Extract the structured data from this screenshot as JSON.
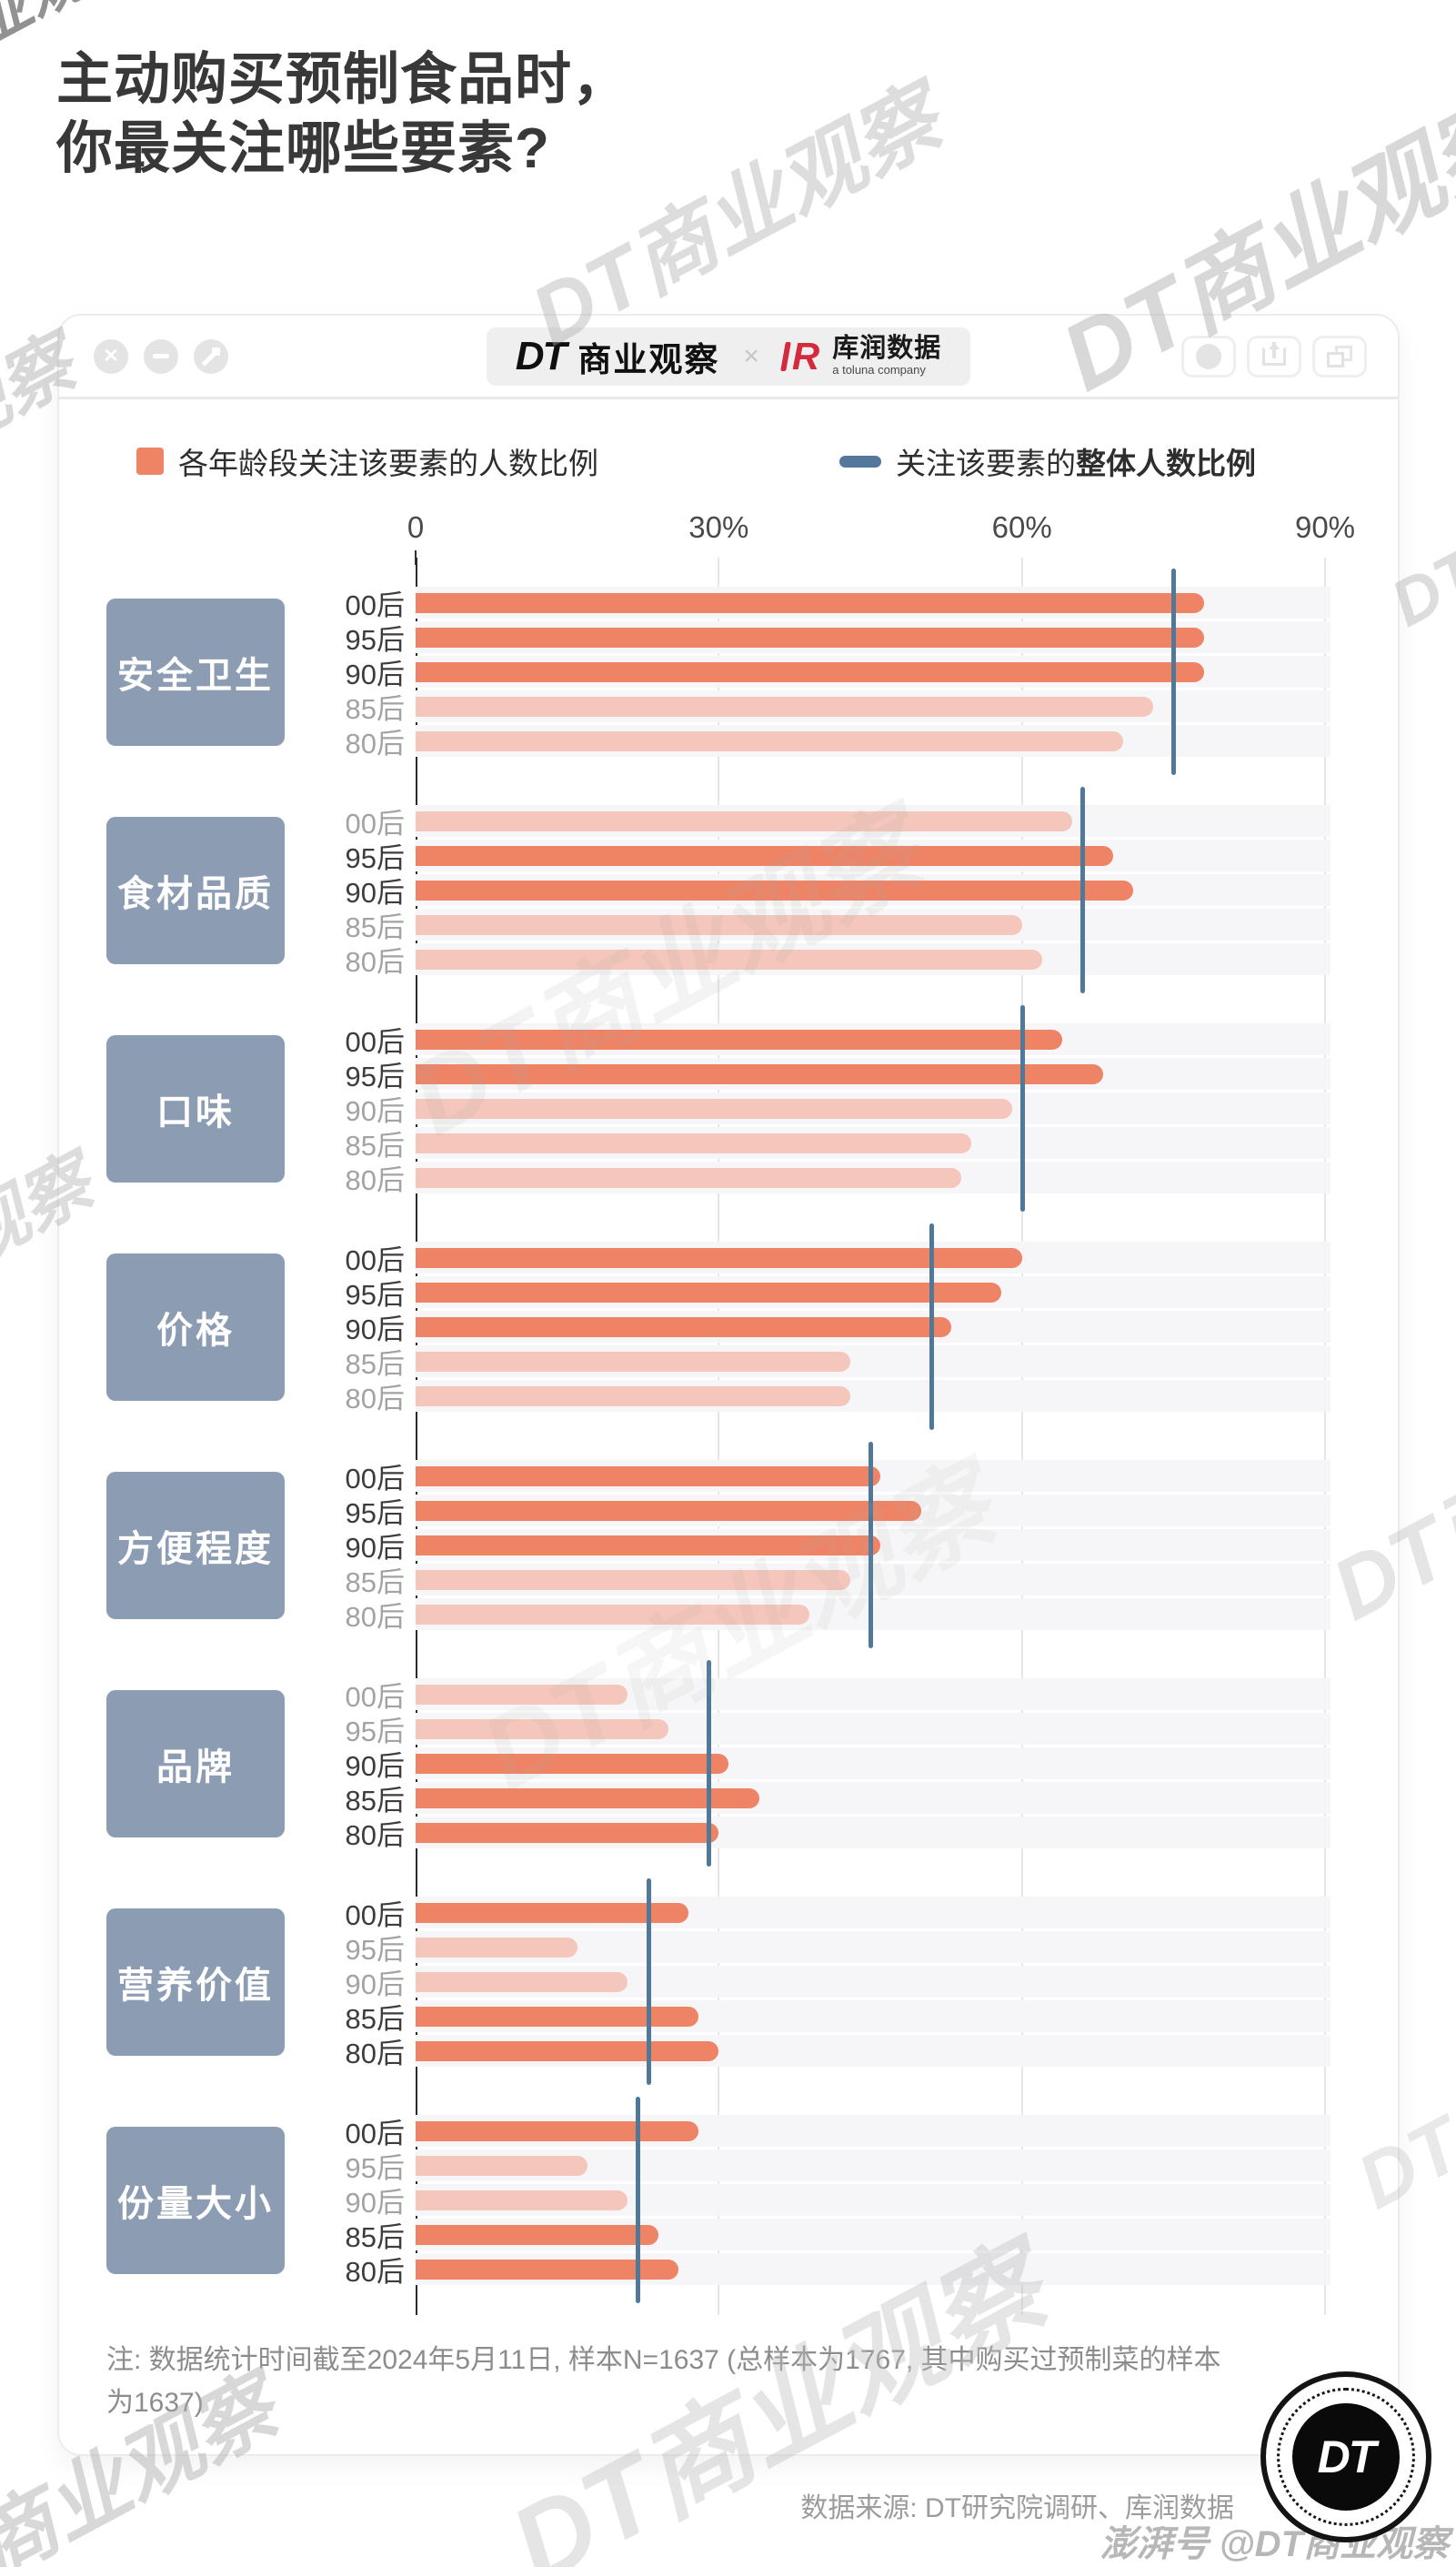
{
  "page": {
    "title_line1": "主动购买预制食品时，",
    "title_line2": "你最关注哪些要素?",
    "watermark": "DT商业观察",
    "bottom_watermark": "澎湃号 @DT商业观察"
  },
  "window": {
    "brand_dt": "DT",
    "brand_name": "商业观察",
    "brand_separator": "×",
    "partner_mark": "R",
    "partner_name": "库润数据",
    "partner_subtitle": "a toluna company"
  },
  "legend": {
    "bars_label": "各年龄段关注该要素的人数比例",
    "overall_label_prefix": "关注该要素的",
    "overall_label_bold": "整体人数比例"
  },
  "chart_data": {
    "type": "bar",
    "orientation": "horizontal",
    "title": "主动购买预制食品时，你最关注哪些要素?",
    "unit": "%",
    "xlim": [
      0,
      90
    ],
    "x_ticks": [
      "0",
      "30%",
      "60%",
      "90%"
    ],
    "x_tick_values": [
      0,
      30,
      60,
      90
    ],
    "grid": true,
    "age_groups": [
      "00后",
      "95后",
      "90后",
      "85后",
      "80后"
    ],
    "categories": [
      {
        "label": "安全卫生",
        "overall": 75,
        "values": [
          78,
          78,
          78,
          73,
          70
        ],
        "emphasis": [
          true,
          true,
          true,
          false,
          false
        ]
      },
      {
        "label": "食材品质",
        "overall": 66,
        "values": [
          65,
          69,
          71,
          60,
          62
        ],
        "emphasis": [
          false,
          true,
          true,
          false,
          false
        ]
      },
      {
        "label": "口味",
        "overall": 60,
        "values": [
          64,
          68,
          59,
          55,
          54
        ],
        "emphasis": [
          true,
          true,
          false,
          false,
          false
        ]
      },
      {
        "label": "价格",
        "overall": 51,
        "values": [
          60,
          58,
          53,
          43,
          43
        ],
        "emphasis": [
          true,
          true,
          true,
          false,
          false
        ]
      },
      {
        "label": "方便程度",
        "overall": 45,
        "values": [
          46,
          50,
          46,
          43,
          39
        ],
        "emphasis": [
          true,
          true,
          true,
          false,
          false
        ]
      },
      {
        "label": "品牌",
        "overall": 29,
        "values": [
          21,
          25,
          31,
          34,
          30
        ],
        "emphasis": [
          false,
          false,
          true,
          true,
          true
        ]
      },
      {
        "label": "营养价值",
        "overall": 23,
        "values": [
          27,
          16,
          21,
          28,
          30
        ],
        "emphasis": [
          true,
          false,
          false,
          true,
          true
        ]
      },
      {
        "label": "份量大小",
        "overall": 22,
        "values": [
          28,
          17,
          21,
          24,
          26
        ],
        "emphasis": [
          true,
          false,
          false,
          true,
          true
        ]
      }
    ],
    "colors": {
      "bar_strong": "#EF8365",
      "bar_light": "#F5C6BB",
      "overall_line": "#4F7899",
      "category_box": "#8C9CB2"
    }
  },
  "footer": {
    "note": "注: 数据统计时间截至2024年5月11日, 样本N=1637 (总样本为1767, 其中购买过预制菜的样本为1637)",
    "source": "数据来源: DT研究院调研、库润数据",
    "logo_text": "DT"
  }
}
